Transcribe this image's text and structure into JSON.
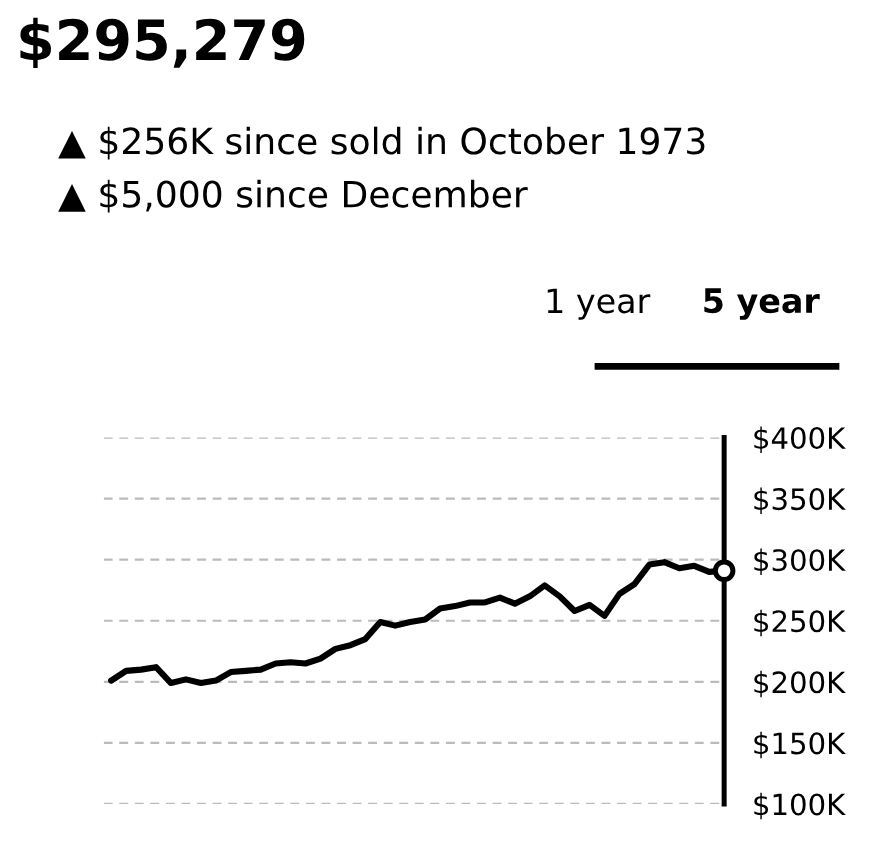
{
  "chart_data": {
    "type": "line",
    "title": "$295,279",
    "annotations": [
      "▲ $256K since sold in October 1973",
      "▲ $5,000 since December",
      "1 year",
      "5 year"
    ],
    "categories": [
      null,
      null,
      null,
      null,
      null,
      null,
      null,
      null,
      null,
      null,
      null,
      null,
      null,
      null,
      null,
      null,
      null,
      null,
      null,
      null,
      null,
      null,
      null,
      null,
      null,
      null,
      null,
      null,
      null,
      null,
      null,
      null,
      null,
      null,
      null,
      null,
      null,
      null,
      null,
      null,
      null,
      null
    ],
    "series": [
      {
        "color": "#000000",
        "marker": "none",
        "values": [
          201000,
          209000,
          210000,
          212000,
          199000,
          202000,
          199000,
          201000,
          208000,
          209000,
          210000,
          215000,
          216000,
          215000,
          219000,
          227000,
          230000,
          235000,
          249000,
          246000,
          249000,
          251000,
          260000,
          262000,
          265000,
          265000,
          269000,
          264000,
          270000,
          279000,
          270000,
          258000,
          263000,
          254000,
          272000,
          280000,
          296000,
          298000,
          293000,
          295000,
          290000,
          291000
        ]
      },
      {
        "type": "scatter",
        "color": "#000000",
        "marker": "circle",
        "values": [
          null,
          null,
          null,
          null,
          null,
          null,
          null,
          null,
          null,
          null,
          null,
          null,
          null,
          null,
          null,
          null,
          null,
          null,
          null,
          null,
          null,
          null,
          null,
          null,
          null,
          null,
          null,
          null,
          null,
          null,
          null,
          null,
          null,
          null,
          null,
          null,
          null,
          null,
          null,
          null,
          null,
          291000
        ]
      }
    ],
    "ylim": [
      100000,
      400000
    ],
    "yticks": [
      {
        "value": 100000,
        "label": "$100K"
      },
      {
        "value": 150000,
        "label": "$150K"
      },
      {
        "value": 200000,
        "label": "$200K"
      },
      {
        "value": 250000,
        "label": "$250K"
      },
      {
        "value": 300000,
        "label": "$300K"
      },
      {
        "value": 350000,
        "label": "$350K"
      },
      {
        "value": 400000,
        "label": "$400K"
      }
    ],
    "grid": "y",
    "tick_labels": "y",
    "legend": false,
    "line_style": "solid"
  }
}
